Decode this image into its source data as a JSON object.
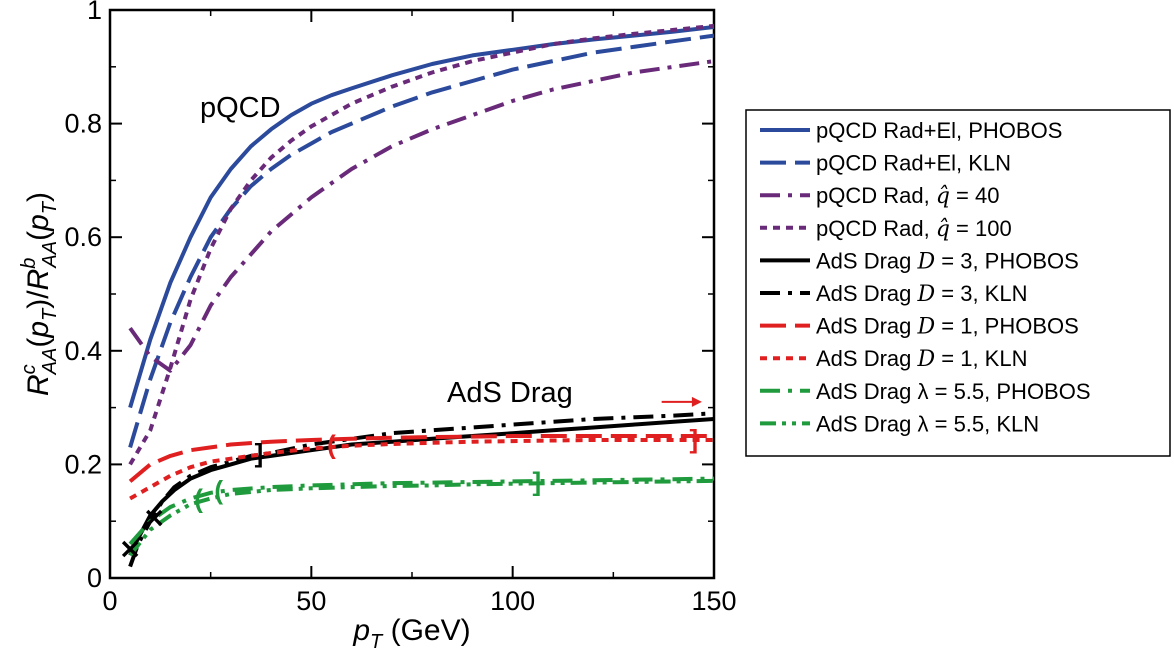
{
  "chart_data": {
    "type": "line",
    "title": "",
    "xlabel": "p_T (GeV)",
    "ylabel": "R^c_AA(p_T)/R^b_AA(p_T)",
    "xlim": [
      0,
      150
    ],
    "ylim": [
      0,
      1
    ],
    "xticks": [
      0,
      50,
      100,
      150
    ],
    "yticks": [
      0,
      0.2,
      0.4,
      0.6,
      0.8,
      1
    ],
    "xtick_labels": [
      "0",
      "50",
      "100",
      "150"
    ],
    "ytick_labels": [
      "0",
      "0.2",
      "0.4",
      "0.6",
      "0.8",
      "1"
    ],
    "annotations": [
      "pQCD",
      "AdS Drag"
    ],
    "legend_position": "right",
    "series": [
      {
        "name": "pQCD Rad+El, PHOBOS",
        "label_pre": "pQCD Rad+El, PHOBOS",
        "label_math": "",
        "label_post": "",
        "color": "#2c4a9c",
        "dash": "solid",
        "x": [
          5,
          10,
          15,
          20,
          25,
          30,
          35,
          40,
          45,
          50,
          55,
          60,
          70,
          80,
          90,
          100,
          110,
          120,
          130,
          140,
          150
        ],
        "y": [
          0.3,
          0.42,
          0.52,
          0.6,
          0.67,
          0.72,
          0.76,
          0.79,
          0.815,
          0.835,
          0.85,
          0.862,
          0.885,
          0.905,
          0.92,
          0.93,
          0.94,
          0.948,
          0.955,
          0.962,
          0.97
        ]
      },
      {
        "name": "pQCD Rad+El, KLN",
        "label_pre": "pQCD Rad+El, KLN",
        "label_math": "",
        "label_post": "",
        "color": "#2c4a9c",
        "dash": "long",
        "x": [
          5,
          10,
          15,
          20,
          25,
          30,
          35,
          40,
          45,
          50,
          55,
          60,
          70,
          80,
          90,
          100,
          110,
          120,
          130,
          140,
          150
        ],
        "y": [
          0.23,
          0.35,
          0.45,
          0.53,
          0.6,
          0.65,
          0.69,
          0.72,
          0.745,
          0.765,
          0.785,
          0.8,
          0.83,
          0.855,
          0.875,
          0.895,
          0.91,
          0.925,
          0.935,
          0.945,
          0.955
        ]
      },
      {
        "name": "pQCD Rad, q-hat = 40",
        "label_pre": "pQCD Rad, ",
        "label_math": "q̂",
        "label_post": " = 40",
        "color": "#6a2a7a",
        "dash": "dashdot",
        "x": [
          5,
          10,
          15,
          20,
          25,
          30,
          40,
          50,
          60,
          70,
          80,
          90,
          100,
          110,
          120,
          130,
          140,
          150
        ],
        "y": [
          0.44,
          0.39,
          0.365,
          0.41,
          0.48,
          0.53,
          0.61,
          0.67,
          0.72,
          0.76,
          0.79,
          0.815,
          0.84,
          0.86,
          0.875,
          0.89,
          0.9,
          0.91
        ]
      },
      {
        "name": "pQCD Rad, q-hat = 100",
        "label_pre": "pQCD Rad, ",
        "label_math": "q̂",
        "label_post": " = 100",
        "color": "#6a2a7a",
        "dash": "dotted",
        "x": [
          5,
          10,
          15,
          20,
          25,
          30,
          35,
          40,
          45,
          50,
          60,
          70,
          80,
          90,
          100,
          110,
          120,
          130,
          140,
          150
        ],
        "y": [
          0.2,
          0.26,
          0.37,
          0.49,
          0.58,
          0.65,
          0.7,
          0.74,
          0.77,
          0.795,
          0.835,
          0.865,
          0.89,
          0.91,
          0.925,
          0.94,
          0.95,
          0.958,
          0.965,
          0.972
        ]
      },
      {
        "name": "AdS Drag D = 3, PHOBOS",
        "label_pre": "AdS Drag ",
        "label_math": "D",
        "label_post": " = 3, PHOBOS",
        "color": "#000000",
        "dash": "solid",
        "x": [
          5,
          7,
          10,
          13,
          16,
          20,
          25,
          30,
          35,
          40,
          50,
          60,
          70,
          80,
          90,
          100,
          110,
          120,
          130,
          140,
          150
        ],
        "y": [
          0.04,
          0.07,
          0.11,
          0.135,
          0.155,
          0.175,
          0.19,
          0.2,
          0.21,
          0.215,
          0.225,
          0.235,
          0.24,
          0.245,
          0.25,
          0.255,
          0.26,
          0.265,
          0.27,
          0.275,
          0.28
        ]
      },
      {
        "name": "AdS Drag D = 3, KLN",
        "label_pre": "AdS Drag ",
        "label_math": "D",
        "label_post": " = 3, KLN",
        "color": "#000000",
        "dash": "dashdot",
        "x": [
          5,
          7,
          10,
          13,
          16,
          20,
          25,
          30,
          35,
          40,
          50,
          60,
          70,
          80,
          90,
          100,
          110,
          120,
          130,
          140,
          150
        ],
        "y": [
          0.02,
          0.06,
          0.1,
          0.135,
          0.16,
          0.18,
          0.195,
          0.205,
          0.215,
          0.22,
          0.235,
          0.245,
          0.255,
          0.26,
          0.265,
          0.27,
          0.275,
          0.28,
          0.283,
          0.286,
          0.29
        ]
      },
      {
        "name": "AdS Drag D = 1, PHOBOS",
        "label_pre": "AdS Drag ",
        "label_math": "D",
        "label_post": " = 1, PHOBOS",
        "color": "#e02020",
        "dash": "long",
        "x": [
          5,
          10,
          15,
          20,
          25,
          30,
          40,
          50,
          60,
          70,
          80,
          90,
          100,
          110,
          120,
          130,
          140,
          150
        ],
        "y": [
          0.17,
          0.2,
          0.215,
          0.225,
          0.23,
          0.235,
          0.24,
          0.243,
          0.245,
          0.247,
          0.248,
          0.249,
          0.25,
          0.25,
          0.25,
          0.25,
          0.25,
          0.25
        ]
      },
      {
        "name": "AdS Drag D = 1, KLN",
        "label_pre": "AdS Drag ",
        "label_math": "D",
        "label_post": " = 1, KLN",
        "color": "#e02020",
        "dash": "dotted",
        "x": [
          5,
          10,
          15,
          20,
          25,
          30,
          40,
          50,
          60,
          70,
          80,
          90,
          100,
          110,
          120,
          130,
          140,
          150
        ],
        "y": [
          0.14,
          0.16,
          0.18,
          0.195,
          0.205,
          0.21,
          0.22,
          0.228,
          0.233,
          0.236,
          0.238,
          0.24,
          0.241,
          0.242,
          0.243,
          0.243,
          0.243,
          0.243
        ]
      },
      {
        "name": "AdS Drag λ = 5.5, PHOBOS",
        "label_pre": "AdS Drag ",
        "label_math": "",
        "label_post": "λ = 5.5, PHOBOS",
        "color": "#1f9a3c",
        "dash": "dashdot",
        "x": [
          5,
          10,
          15,
          20,
          25,
          30,
          40,
          50,
          60,
          70,
          80,
          90,
          100,
          110,
          120,
          130,
          140,
          150
        ],
        "y": [
          0.06,
          0.1,
          0.125,
          0.14,
          0.15,
          0.155,
          0.16,
          0.163,
          0.165,
          0.167,
          0.168,
          0.169,
          0.17,
          0.171,
          0.172,
          0.173,
          0.174,
          0.175
        ]
      },
      {
        "name": "AdS Drag λ = 5.5, KLN",
        "label_pre": "AdS Drag ",
        "label_math": "",
        "label_post": "λ = 5.5, KLN",
        "color": "#1f9a3c",
        "dash": "dashdotdot",
        "x": [
          5,
          10,
          15,
          20,
          25,
          30,
          40,
          50,
          60,
          70,
          80,
          90,
          100,
          110,
          120,
          130,
          140,
          150
        ],
        "y": [
          0.04,
          0.085,
          0.11,
          0.13,
          0.14,
          0.148,
          0.155,
          0.158,
          0.16,
          0.162,
          0.163,
          0.165,
          0.166,
          0.167,
          0.168,
          0.169,
          0.17,
          0.171
        ]
      }
    ],
    "validity_markers": [
      {
        "x": 5,
        "y": 0.05,
        "glyph": "✕",
        "color": "#000000"
      },
      {
        "x": 11,
        "y": 0.105,
        "glyph": "✕",
        "color": "#000000"
      },
      {
        "x": 37,
        "y": 0.22,
        "glyph": "]",
        "color": "#000000"
      },
      {
        "x": 55,
        "y": 0.235,
        "glyph": "(",
        "color": "#e02020"
      },
      {
        "x": 145,
        "y": 0.245,
        "glyph": "]",
        "color": "#e02020"
      },
      {
        "x": 22,
        "y": 0.14,
        "glyph": "(",
        "color": "#1f9a3c"
      },
      {
        "x": 27,
        "y": 0.155,
        "glyph": "(",
        "color": "#1f9a3c"
      },
      {
        "x": 106,
        "y": 0.17,
        "glyph": "]",
        "color": "#1f9a3c"
      }
    ],
    "arrow": {
      "from_x": 137,
      "to_x": 147,
      "y": 0.31,
      "color": "#e02020"
    }
  }
}
